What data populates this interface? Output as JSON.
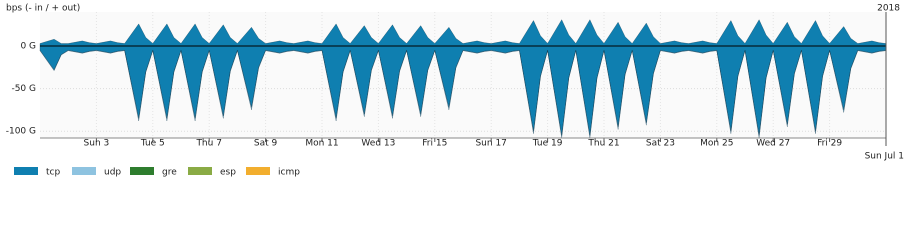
{
  "chart_data": {
    "type": "area",
    "title": "bps (- in / + out)",
    "subtitle": "2018",
    "x": [
      1,
      1.5,
      1.75,
      2,
      2.5,
      2.75,
      3,
      3.5,
      3.75,
      4,
      4.5,
      4.75,
      5,
      5.5,
      5.75,
      6,
      6.5,
      6.75,
      7,
      7.5,
      7.75,
      8,
      8.5,
      8.75,
      9,
      9.5,
      9.75,
      10,
      10.5,
      10.75,
      11,
      11.5,
      11.75,
      12,
      12.5,
      12.75,
      13,
      13.5,
      13.75,
      14,
      14.5,
      14.75,
      15,
      15.5,
      15.75,
      16,
      16.5,
      16.75,
      17,
      17.5,
      17.75,
      18,
      18.5,
      18.75,
      19,
      19.5,
      19.75,
      20,
      20.5,
      20.75,
      21,
      21.5,
      21.75,
      22,
      22.5,
      22.75,
      23,
      23.5,
      23.75,
      24,
      24.5,
      24.75,
      25,
      25.5,
      25.75,
      26,
      26.5,
      26.75,
      27,
      27.5,
      27.75,
      28,
      28.5,
      28.75,
      29,
      29.5,
      29.75,
      30,
      30.5,
      30.75,
      31
    ],
    "xlim": [
      1,
      31
    ],
    "xticks": [
      {
        "value": 3,
        "label": "Sun 3"
      },
      {
        "value": 5,
        "label": "Tue 5"
      },
      {
        "value": 7,
        "label": "Thu 7"
      },
      {
        "value": 9,
        "label": "Sat 9"
      },
      {
        "value": 11,
        "label": "Mon 11"
      },
      {
        "value": 13,
        "label": "Wed 13"
      },
      {
        "value": 15,
        "label": "Fri 15"
      },
      {
        "value": 17,
        "label": "Sun 17"
      },
      {
        "value": 19,
        "label": "Tue 19"
      },
      {
        "value": 21,
        "label": "Thu 21"
      },
      {
        "value": 23,
        "label": "Sat 23"
      },
      {
        "value": 25,
        "label": "Mon 25"
      },
      {
        "value": 27,
        "label": "Wed 27"
      },
      {
        "value": 29,
        "label": "Fri 29"
      },
      {
        "value": 31,
        "label": "Sun Jul 1"
      }
    ],
    "ylim": [
      -108,
      40
    ],
    "yticks": [
      {
        "value": 0,
        "label": "0 G"
      },
      {
        "value": -50,
        "label": "-50 G"
      },
      {
        "value": -100,
        "label": "-100 G"
      }
    ],
    "grid": true,
    "series": [
      {
        "name": "tcp",
        "color": "#0f7fb0",
        "values": [
          -5,
          -28,
          -10,
          -5,
          -8,
          -6,
          -5,
          -8,
          -6,
          -5,
          -85,
          -30,
          -5,
          -85,
          -30,
          -5,
          -85,
          -30,
          -5,
          -82,
          -29,
          -5,
          -72,
          -25,
          -5,
          -8,
          -6,
          -5,
          -8,
          -6,
          -5,
          -85,
          -30,
          -5,
          -80,
          -28,
          -5,
          -82,
          -29,
          -5,
          -80,
          -28,
          -5,
          -72,
          -25,
          -5,
          -8,
          -6,
          -5,
          -8,
          -6,
          -5,
          -100,
          -35,
          -5,
          -105,
          -37,
          -5,
          -105,
          -37,
          -5,
          -95,
          -33,
          -5,
          -90,
          -32,
          -5,
          -8,
          -6,
          -5,
          -8,
          -6,
          -5,
          -100,
          -35,
          -5,
          -105,
          -37,
          -5,
          -92,
          -32,
          -5,
          -100,
          -35,
          -5,
          -75,
          -26,
          -5,
          -8,
          -6,
          -5
        ],
        "values_out": [
          3,
          8,
          3,
          3,
          6,
          4,
          3,
          6,
          4,
          3,
          26,
          10,
          3,
          26,
          10,
          3,
          26,
          10,
          3,
          25,
          10,
          3,
          22,
          9,
          3,
          6,
          4,
          3,
          6,
          4,
          3,
          26,
          10,
          3,
          24,
          10,
          3,
          25,
          10,
          3,
          24,
          10,
          3,
          22,
          9,
          3,
          6,
          4,
          3,
          6,
          4,
          3,
          30,
          12,
          3,
          31,
          13,
          3,
          31,
          13,
          3,
          28,
          11,
          3,
          27,
          11,
          3,
          6,
          4,
          3,
          6,
          4,
          3,
          30,
          12,
          3,
          31,
          13,
          3,
          28,
          11,
          3,
          30,
          12,
          3,
          23,
          9,
          3,
          6,
          4,
          3
        ]
      },
      {
        "name": "udp",
        "color": "#8ec3e0",
        "values": [
          -0.5,
          -1,
          -0.5,
          -0.5,
          -0.5,
          -0.5,
          -0.5,
          -0.5,
          -0.5,
          -0.5,
          -3,
          -1,
          -0.5,
          -3,
          -1,
          -0.5,
          -3,
          -1,
          -0.5,
          -3,
          -1,
          -0.5,
          -3,
          -1,
          -0.5,
          -0.5,
          -0.5,
          -0.5,
          -0.5,
          -0.5,
          -0.5,
          -3,
          -1,
          -0.5,
          -3,
          -1,
          -0.5,
          -3,
          -1,
          -0.5,
          -3,
          -1,
          -0.5,
          -3,
          -1,
          -0.5,
          -0.5,
          -0.5,
          -0.5,
          -0.5,
          -0.5,
          -0.5,
          -3,
          -1,
          -0.5,
          -3,
          -1,
          -0.5,
          -3,
          -1,
          -0.5,
          -3,
          -1,
          -0.5,
          -3,
          -1,
          -0.5,
          -0.5,
          -0.5,
          -0.5,
          -0.5,
          -0.5,
          -0.5,
          -3,
          -1,
          -0.5,
          -3,
          -1,
          -0.5,
          -3,
          -1,
          -0.5,
          -3,
          -1,
          -0.5,
          -3,
          -1,
          -0.5,
          -0.5,
          -0.5,
          -0.5
        ]
      },
      {
        "name": "gre",
        "color": "#2e7d2e"
      },
      {
        "name": "esp",
        "color": "#8aab45"
      },
      {
        "name": "icmp",
        "color": "#f2ae2e"
      }
    ]
  }
}
